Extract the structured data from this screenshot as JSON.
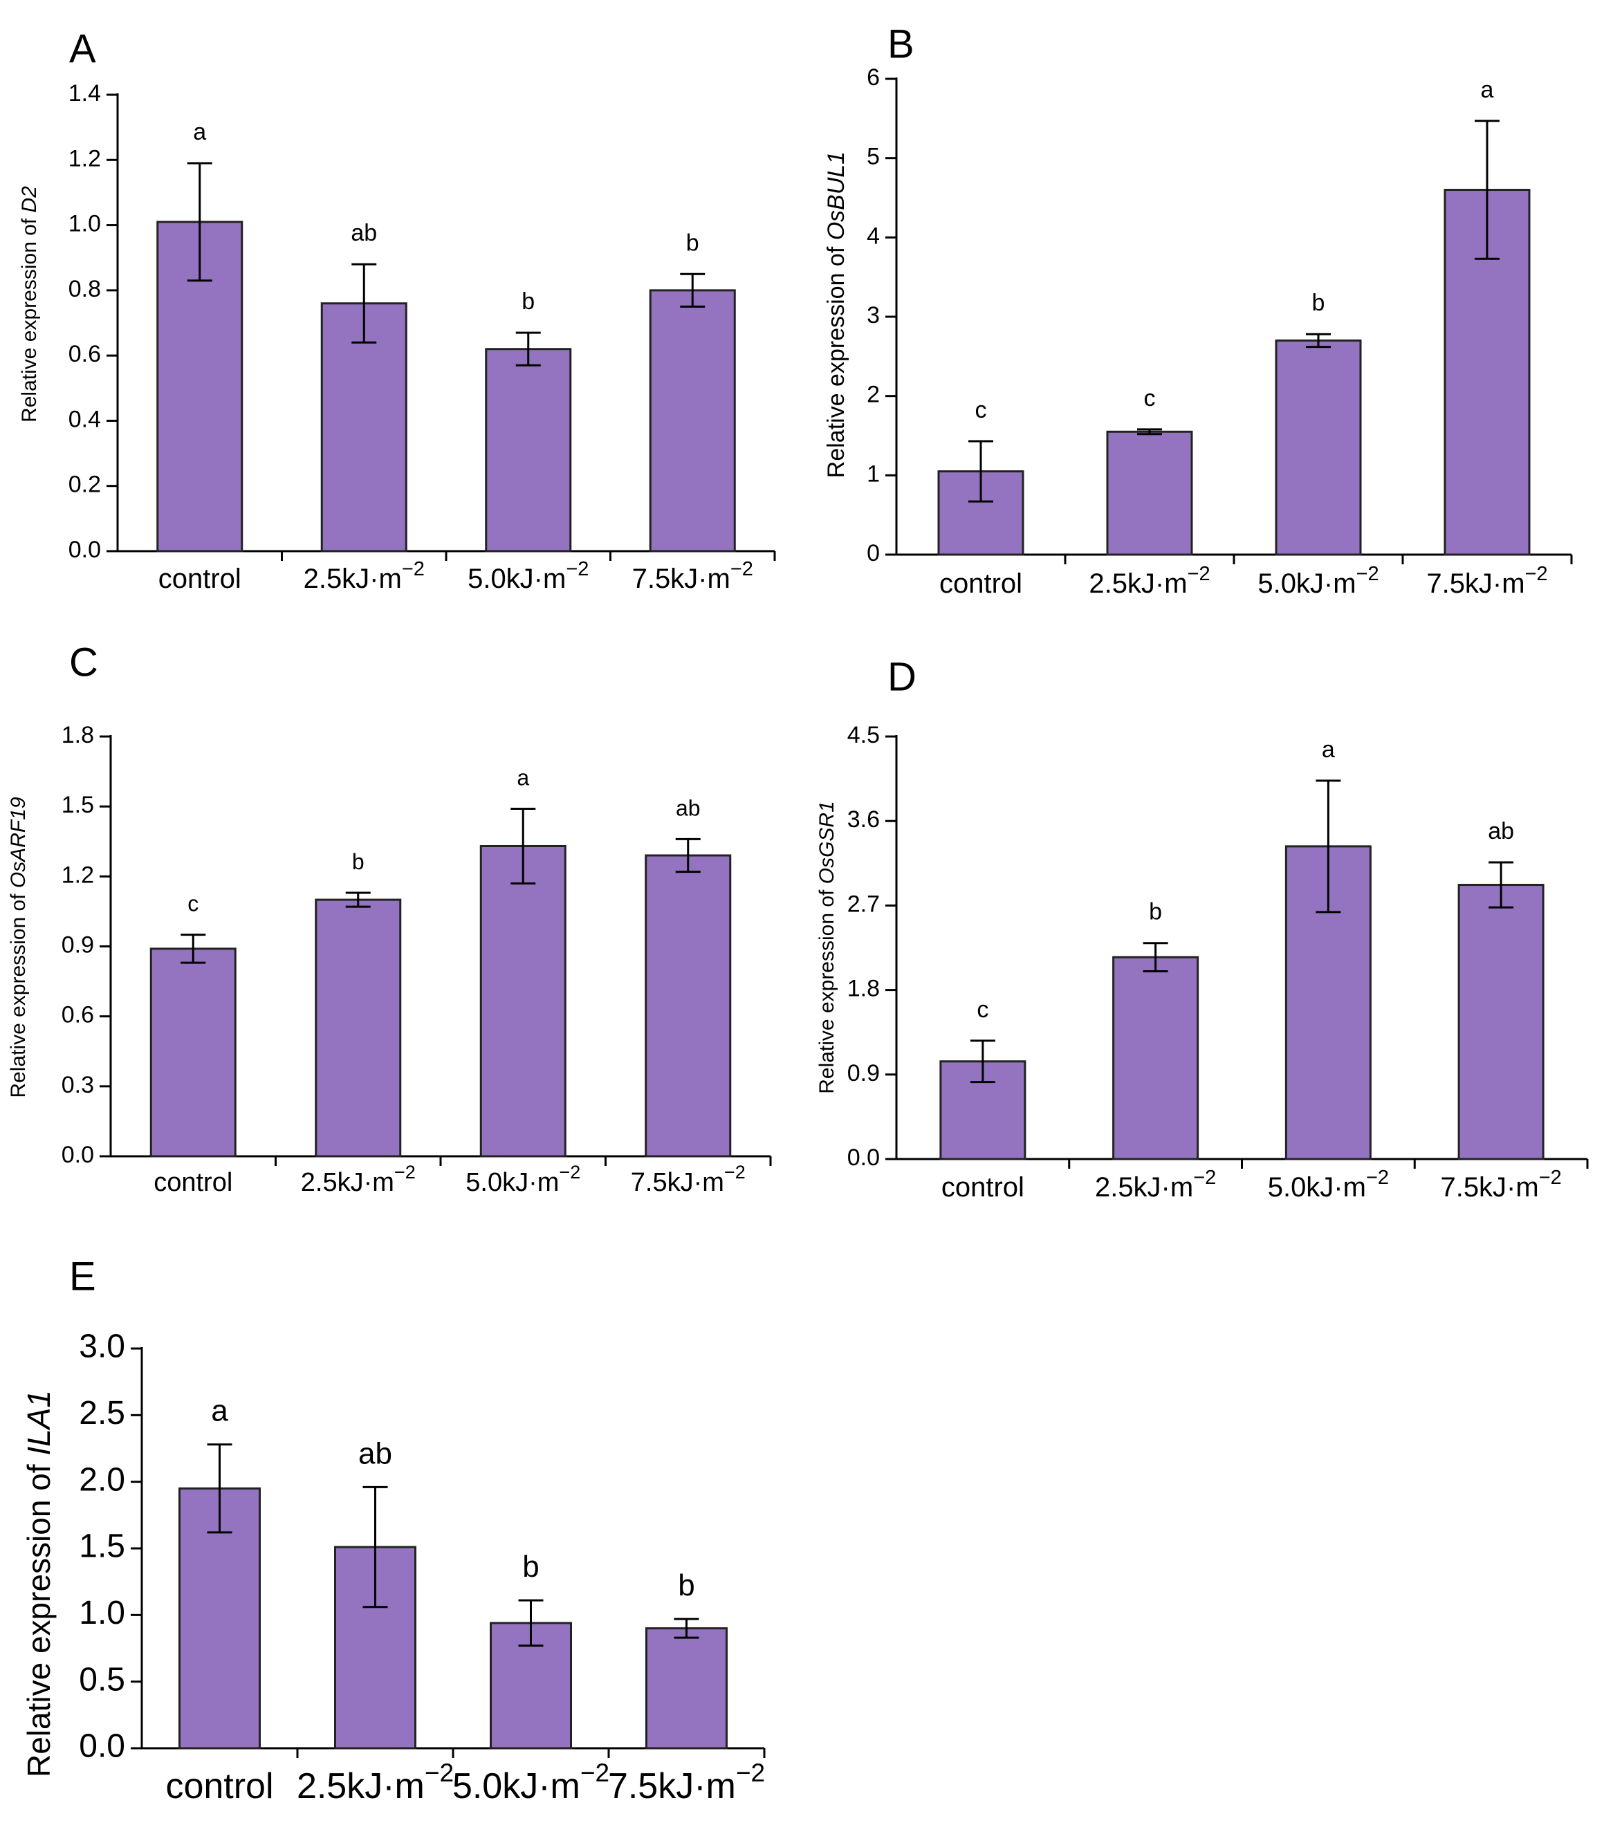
{
  "figure": {
    "bar_color": "#9474c0",
    "bar_edge_color": "#222222",
    "axis_color": "#000000"
  },
  "chart_data": [
    {
      "type": "bar",
      "panel": "A",
      "ylabel_prefix": "Relative expression of ",
      "gene": "D2",
      "categories": [
        "control",
        "2.5kJ·m",
        "5.0kJ·m",
        "7.5kJ·m"
      ],
      "category_superscripts": [
        "",
        "−2",
        "−2",
        "−2"
      ],
      "values": [
        1.01,
        0.76,
        0.62,
        0.8
      ],
      "errors": [
        0.18,
        0.12,
        0.05,
        0.05
      ],
      "significance": [
        "a",
        "ab",
        "b",
        "b"
      ],
      "ylim": [
        0,
        1.4
      ],
      "yticks": [
        "0.0",
        "0.2",
        "0.4",
        "0.6",
        "0.8",
        "1.0",
        "1.2",
        "1.4"
      ]
    },
    {
      "type": "bar",
      "panel": "B",
      "ylabel_prefix": "Relative expression of ",
      "gene": "OsBUL1",
      "categories": [
        "control",
        "2.5kJ·m",
        "5.0kJ·m",
        "7.5kJ·m"
      ],
      "category_superscripts": [
        "",
        "−2",
        "−2",
        "−2"
      ],
      "values": [
        1.05,
        1.55,
        2.7,
        4.6
      ],
      "errors": [
        0.38,
        0.03,
        0.08,
        0.87
      ],
      "significance": [
        "c",
        "c",
        "b",
        "a"
      ],
      "ylim": [
        0,
        6
      ],
      "yticks": [
        "0",
        "1",
        "2",
        "3",
        "4",
        "5",
        "6"
      ]
    },
    {
      "type": "bar",
      "panel": "C",
      "ylabel_prefix": "Relative expression of ",
      "gene": "OsARF19",
      "categories": [
        "control",
        "2.5kJ·m",
        "5.0kJ·m",
        "7.5kJ·m"
      ],
      "category_superscripts": [
        "",
        "−2",
        "−2",
        "−2"
      ],
      "values": [
        0.89,
        1.1,
        1.33,
        1.29
      ],
      "errors": [
        0.06,
        0.03,
        0.16,
        0.07
      ],
      "significance": [
        "c",
        "b",
        "a",
        "ab"
      ],
      "ylim": [
        0,
        1.8
      ],
      "yticks": [
        "0.0",
        "0.3",
        "0.6",
        "0.9",
        "1.2",
        "1.5",
        "1.8"
      ]
    },
    {
      "type": "bar",
      "panel": "D",
      "ylabel_prefix": "Relative expression of ",
      "gene": "OsGSR1",
      "categories": [
        "control",
        "2.5kJ·m",
        "5.0kJ·m",
        "7.5kJ·m"
      ],
      "category_superscripts": [
        "",
        "−2",
        "−2",
        "−2"
      ],
      "values": [
        1.04,
        2.15,
        3.33,
        2.92
      ],
      "errors": [
        0.22,
        0.15,
        0.7,
        0.24
      ],
      "significance": [
        "c",
        "b",
        "a",
        "ab"
      ],
      "ylim": [
        0,
        4.5
      ],
      "yticks": [
        "0.0",
        "0.9",
        "1.8",
        "2.7",
        "3.6",
        "4.5"
      ]
    },
    {
      "type": "bar",
      "panel": "E",
      "ylabel_prefix": "Relative expression of ",
      "gene": "ILA1",
      "categories": [
        "control",
        "2.5kJ·m",
        "5.0kJ·m",
        "7.5kJ·m"
      ],
      "category_superscripts": [
        "",
        "−2",
        "−2",
        "−2"
      ],
      "values": [
        1.95,
        1.51,
        0.94,
        0.9
      ],
      "errors": [
        0.33,
        0.45,
        0.17,
        0.07
      ],
      "significance": [
        "a",
        "ab",
        "b",
        "b"
      ],
      "ylim": [
        0,
        3.0
      ],
      "yticks": [
        "0.0",
        "0.5",
        "1.0",
        "1.5",
        "2.0",
        "2.5",
        "3.0"
      ]
    }
  ]
}
